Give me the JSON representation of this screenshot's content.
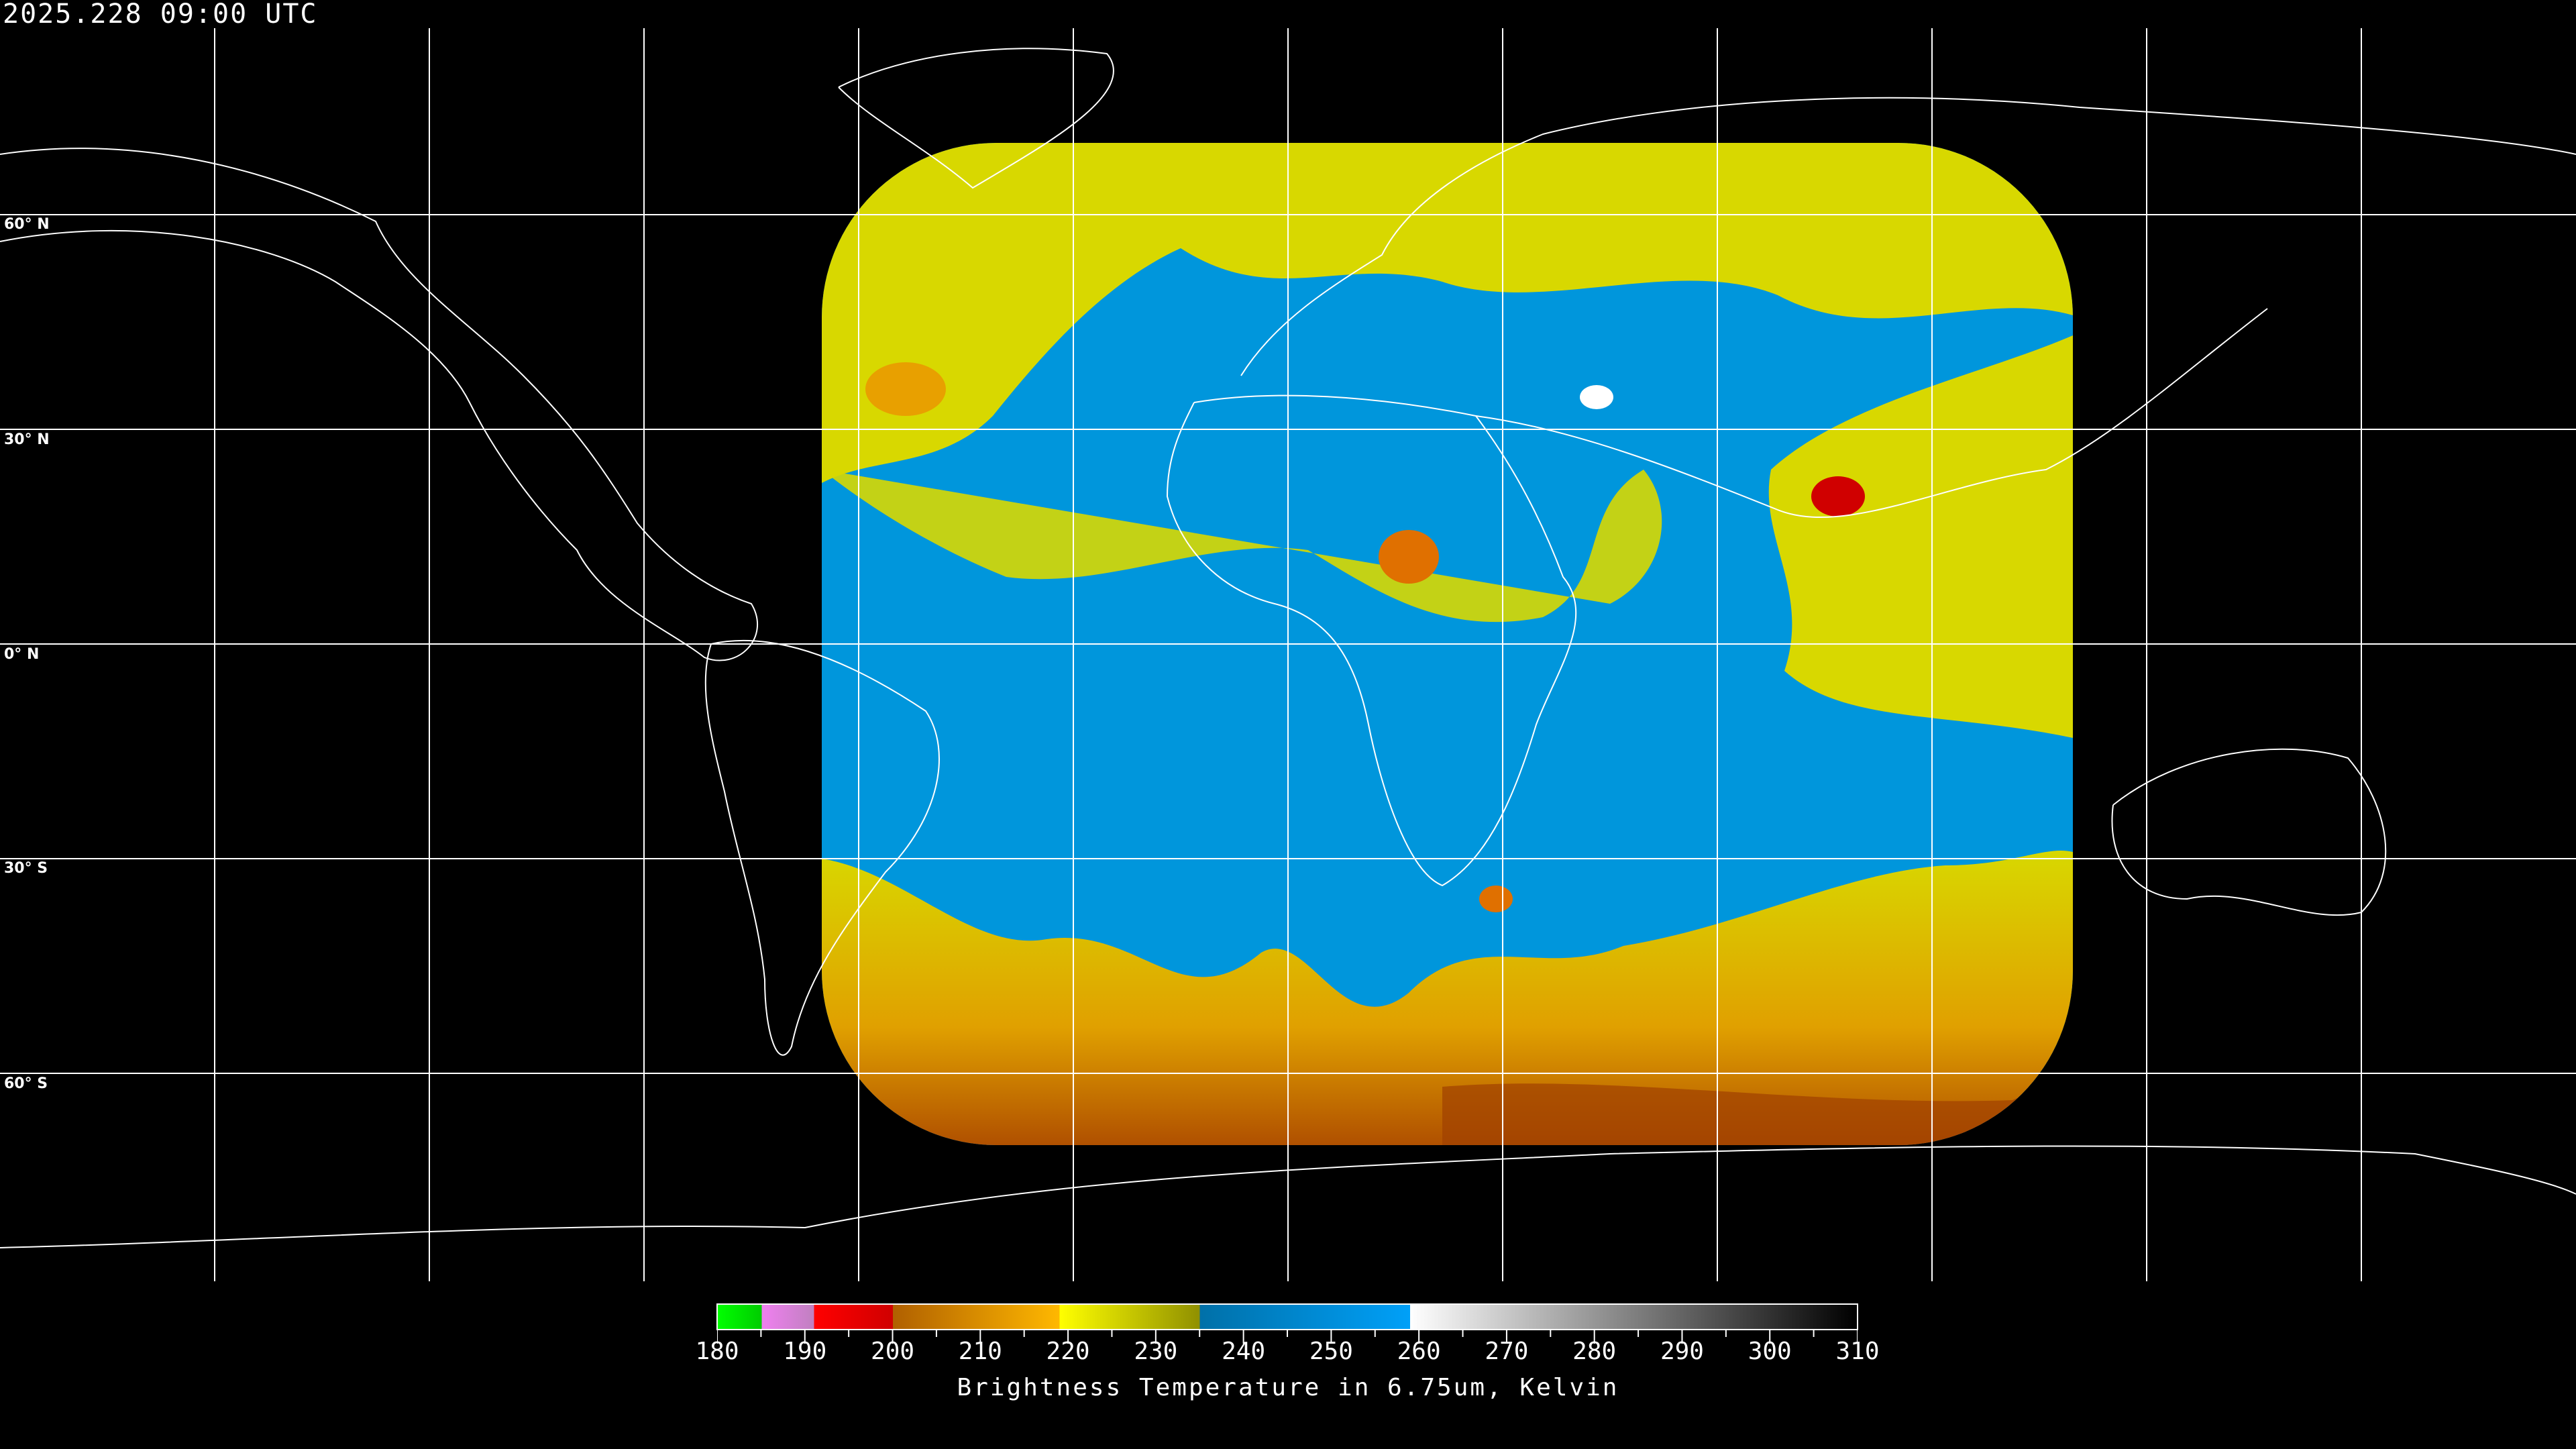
{
  "header": {
    "timestamp": "2025.228 09:00 UTC"
  },
  "map": {
    "projection": "equirectangular",
    "background": "#000000",
    "grid_color": "#ffffff",
    "coastline_color": "#ffffff",
    "lat_labels": [
      "60° N",
      "30° N",
      "0° N",
      "30° S",
      "60° S"
    ],
    "colors": {
      "cold_cloud_yellow": "#d8d800",
      "moist_blue": "#0096dc",
      "deep_convection_red": "#d00000",
      "orange": "#e8a000"
    }
  },
  "colorbar": {
    "title": "Brightness Temperature in 6.75um, Kelvin",
    "tick_labels": [
      "180",
      "190",
      "200",
      "210",
      "220",
      "230",
      "240",
      "250",
      "260",
      "270",
      "280",
      "290",
      "300",
      "310"
    ],
    "range": [
      180,
      310
    ],
    "segments": [
      {
        "from": 180,
        "to": 185,
        "start": "#00ff00",
        "end": "#00cc00"
      },
      {
        "from": 185,
        "to": 191,
        "start": "#f080f0",
        "end": "#c080c0"
      },
      {
        "from": 191,
        "to": 200,
        "start": "#ff0000",
        "end": "#d00000"
      },
      {
        "from": 200,
        "to": 219,
        "start": "#b06000",
        "end": "#ffb800"
      },
      {
        "from": 219,
        "to": 235,
        "start": "#ffff00",
        "end": "#909000"
      },
      {
        "from": 235,
        "to": 259,
        "start": "#0070a8",
        "end": "#00a0f8"
      },
      {
        "from": 259,
        "to": 310,
        "start": "#ffffff",
        "end": "#000000"
      }
    ]
  }
}
